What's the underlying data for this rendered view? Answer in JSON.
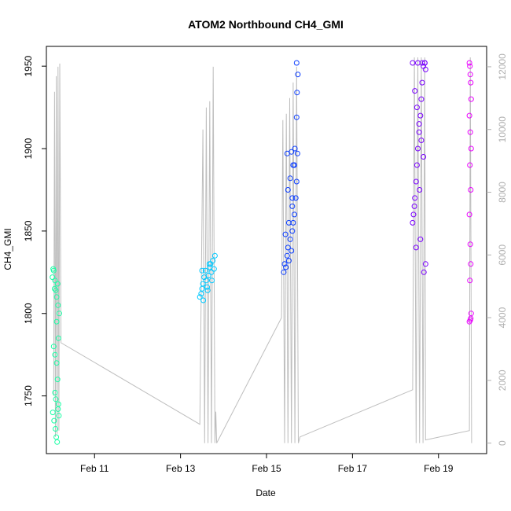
{
  "chart_data": {
    "type": "scatter",
    "title": "ATOM2 Northbound CH4_GMI",
    "xlabel": "Date",
    "ylabel": "CH4_GMI",
    "x_ticks": [
      {
        "day": 11,
        "label": "Feb 11"
      },
      {
        "day": 13,
        "label": "Feb 13"
      },
      {
        "day": 15,
        "label": "Feb 15"
      },
      {
        "day": 17,
        "label": "Feb 17"
      },
      {
        "day": 19,
        "label": "Feb 19"
      }
    ],
    "y_ticks": [
      1750,
      1800,
      1850,
      1900,
      1950
    ],
    "y_right_ticks": [
      0,
      2000,
      4000,
      6000,
      8000,
      10000,
      12000
    ],
    "xlim": [
      9.88,
      20.12
    ],
    "ylim": [
      1715,
      1962
    ],
    "y_right_lim": [
      -335,
      12650
    ],
    "grid": false,
    "colors": {
      "altitude_line": "#bebebe",
      "right_axis": "#b0b0b0",
      "flight1": "#19ffa5",
      "flight2": "#00c8ff",
      "flight3": "#0b3dff",
      "flight4": "#7a00ff",
      "flight5": "#ea00ff"
    },
    "altitude_series": {
      "name": "",
      "points": [
        [
          10.05,
          1500
        ],
        [
          10.07,
          11200
        ],
        [
          10.09,
          200
        ],
        [
          10.11,
          11700
        ],
        [
          10.13,
          300
        ],
        [
          10.15,
          12000
        ],
        [
          10.17,
          400
        ],
        [
          10.19,
          12100
        ],
        [
          10.22,
          3200
        ],
        [
          13.45,
          600
        ],
        [
          13.52,
          10000
        ],
        [
          13.56,
          0
        ],
        [
          13.6,
          10700
        ],
        [
          13.64,
          0
        ],
        [
          13.68,
          10900
        ],
        [
          13.72,
          0
        ],
        [
          13.76,
          12000
        ],
        [
          13.8,
          0
        ],
        [
          13.82,
          1000
        ],
        [
          13.84,
          0
        ],
        [
          15.35,
          4000
        ],
        [
          15.38,
          10300
        ],
        [
          15.42,
          0
        ],
        [
          15.46,
          10500
        ],
        [
          15.5,
          0
        ],
        [
          15.54,
          11000
        ],
        [
          15.58,
          0
        ],
        [
          15.62,
          11500
        ],
        [
          15.66,
          0
        ],
        [
          15.7,
          12000
        ],
        [
          15.74,
          0
        ],
        [
          15.78,
          200
        ],
        [
          18.4,
          1700
        ],
        [
          18.44,
          12300
        ],
        [
          18.48,
          0
        ],
        [
          18.52,
          12300
        ],
        [
          18.56,
          0
        ],
        [
          18.6,
          12300
        ],
        [
          18.64,
          0
        ],
        [
          18.68,
          12300
        ],
        [
          18.7,
          100
        ],
        [
          19.72,
          400
        ],
        [
          19.74,
          12300
        ],
        [
          19.77,
          0
        ]
      ]
    },
    "series": [
      {
        "name": "",
        "color": "#19ffa5",
        "x": [
          10.02,
          10.05,
          10.08,
          10.1,
          10.12,
          10.15,
          10.18,
          10.05,
          10.08,
          10.12,
          10.14,
          10.16,
          10.03,
          10.06,
          10.09,
          10.11,
          10.13,
          10.08,
          10.1,
          10.15,
          10.17,
          10.04,
          10.07,
          10.12,
          10.16,
          10.14
        ],
        "y": [
          1822,
          1826,
          1820,
          1814,
          1810,
          1805,
          1800,
          1780,
          1775,
          1770,
          1760,
          1745,
          1740,
          1735,
          1730,
          1725,
          1722,
          1752,
          1748,
          1742,
          1738,
          1827,
          1815,
          1795,
          1785,
          1818
        ]
      },
      {
        "name": "",
        "color": "#00c8ff",
        "x": [
          13.45,
          13.5,
          13.52,
          13.55,
          13.58,
          13.6,
          13.62,
          13.65,
          13.68,
          13.7,
          13.72,
          13.75,
          13.78,
          13.8,
          13.48,
          13.53,
          13.63,
          13.73,
          13.5,
          13.67
        ],
        "y": [
          1810,
          1815,
          1818,
          1822,
          1826,
          1820,
          1816,
          1823,
          1828,
          1830,
          1825,
          1832,
          1827,
          1835,
          1812,
          1808,
          1814,
          1820,
          1826,
          1830
        ]
      },
      {
        "name": "",
        "color": "#0b3dff",
        "x": [
          15.4,
          15.42,
          15.45,
          15.48,
          15.5,
          15.52,
          15.55,
          15.58,
          15.6,
          15.62,
          15.65,
          15.68,
          15.7,
          15.72,
          15.5,
          15.55,
          15.6,
          15.65,
          15.48,
          15.58,
          15.62,
          15.66,
          15.44,
          15.7,
          15.71,
          15.73,
          15.7,
          15.52,
          15.6
        ],
        "y": [
          1825,
          1830,
          1828,
          1835,
          1840,
          1832,
          1845,
          1838,
          1850,
          1855,
          1860,
          1870,
          1880,
          1897,
          1875,
          1882,
          1865,
          1890,
          1897,
          1898,
          1890,
          1900,
          1848,
          1919,
          1934,
          1945,
          1952,
          1855,
          1870
        ]
      },
      {
        "name": "",
        "color": "#7a00ff",
        "x": [
          18.4,
          18.42,
          18.45,
          18.48,
          18.5,
          18.52,
          18.55,
          18.58,
          18.6,
          18.62,
          18.65,
          18.68,
          18.7,
          18.45,
          18.5,
          18.55,
          18.6,
          18.65,
          18.7,
          18.48,
          18.58,
          18.66,
          18.4,
          18.52,
          18.62,
          18.68,
          18.44,
          18.56
        ],
        "y": [
          1855,
          1860,
          1870,
          1880,
          1890,
          1900,
          1910,
          1920,
          1930,
          1940,
          1950,
          1952,
          1948,
          1935,
          1925,
          1915,
          1905,
          1895,
          1830,
          1840,
          1845,
          1825,
          1952,
          1952,
          1952,
          1952,
          1865,
          1875
        ]
      },
      {
        "name": "",
        "color": "#ea00ff",
        "x": [
          19.72,
          19.73,
          19.74,
          19.75,
          19.76,
          19.72,
          19.74,
          19.76,
          19.73,
          19.75,
          19.72,
          19.74,
          19.75,
          19.73,
          19.76,
          19.74,
          19.72,
          19.75
        ],
        "y": [
          1952,
          1950,
          1945,
          1940,
          1930,
          1920,
          1910,
          1900,
          1890,
          1875,
          1860,
          1842,
          1830,
          1820,
          1800,
          1796,
          1795,
          1797
        ]
      }
    ]
  }
}
